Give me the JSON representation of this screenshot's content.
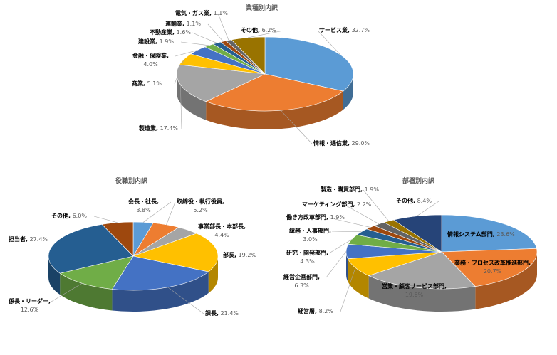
{
  "chart_data": [
    {
      "type": "pie",
      "title": "業種別内訳",
      "style": "3d",
      "start": "12 o'clock, clockwise",
      "slices": [
        {
          "label": "サービス業",
          "value": 32.7,
          "color": "#5B9BD5"
        },
        {
          "label": "情報・通信業",
          "value": 29.0,
          "color": "#ED7D31"
        },
        {
          "label": "製造業",
          "value": 17.4,
          "color": "#A5A5A5"
        },
        {
          "label": "商業",
          "value": 5.1,
          "color": "#FFC000"
        },
        {
          "label": "金融・保険業",
          "value": 4.0,
          "color": "#4472C4"
        },
        {
          "label": "建設業",
          "value": 1.9,
          "color": "#70AD47"
        },
        {
          "label": "不動産業",
          "value": 1.6,
          "color": "#255E91"
        },
        {
          "label": "運輸業",
          "value": 1.1,
          "color": "#9E480E"
        },
        {
          "label": "電気・ガス業",
          "value": 1.1,
          "color": "#636363"
        },
        {
          "label": "その他",
          "value": 6.2,
          "color": "#997300"
        }
      ]
    },
    {
      "type": "pie",
      "title": "役職別内訳",
      "style": "3d",
      "start": "12 o'clock, clockwise",
      "slices": [
        {
          "label": "会長・社長",
          "value": 3.8,
          "color": "#5B9BD5"
        },
        {
          "label": "取締役・執行役員",
          "value": 5.2,
          "color": "#ED7D31"
        },
        {
          "label": "事業部長・本部長",
          "value": 4.4,
          "color": "#A5A5A5"
        },
        {
          "label": "部長",
          "value": 19.2,
          "color": "#FFC000"
        },
        {
          "label": "課長",
          "value": 21.4,
          "color": "#4472C4"
        },
        {
          "label": "係長・リーダー",
          "value": 12.6,
          "color": "#70AD47"
        },
        {
          "label": "担当者",
          "value": 27.4,
          "color": "#255E91"
        },
        {
          "label": "その他",
          "value": 6.0,
          "color": "#9E480E"
        }
      ]
    },
    {
      "type": "pie",
      "title": "部署別内訳",
      "style": "3d",
      "start": "12 o'clock, clockwise",
      "slices": [
        {
          "label": "情報システム部門",
          "value": 23.6,
          "color": "#5B9BD5"
        },
        {
          "label": "業務・プロセス改革推進部門",
          "value": 20.7,
          "color": "#ED7D31"
        },
        {
          "label": "営業・顧客サービス部門",
          "value": 19.6,
          "color": "#A5A5A5"
        },
        {
          "label": "経営層",
          "value": 8.2,
          "color": "#FFC000"
        },
        {
          "label": "経営企画部門",
          "value": 6.3,
          "color": "#4472C4"
        },
        {
          "label": "研究・開発部門",
          "value": 4.3,
          "color": "#70AD47"
        },
        {
          "label": "総務・人事部門",
          "value": 3.0,
          "color": "#255E91"
        },
        {
          "label": "働き方改革部門",
          "value": 1.9,
          "color": "#9E480E"
        },
        {
          "label": "マーケティング部門",
          "value": 2.2,
          "color": "#636363"
        },
        {
          "label": "製造・購買部門",
          "value": 1.9,
          "color": "#997300"
        },
        {
          "label": "その他",
          "value": 8.4,
          "color": "#264478"
        }
      ]
    }
  ]
}
